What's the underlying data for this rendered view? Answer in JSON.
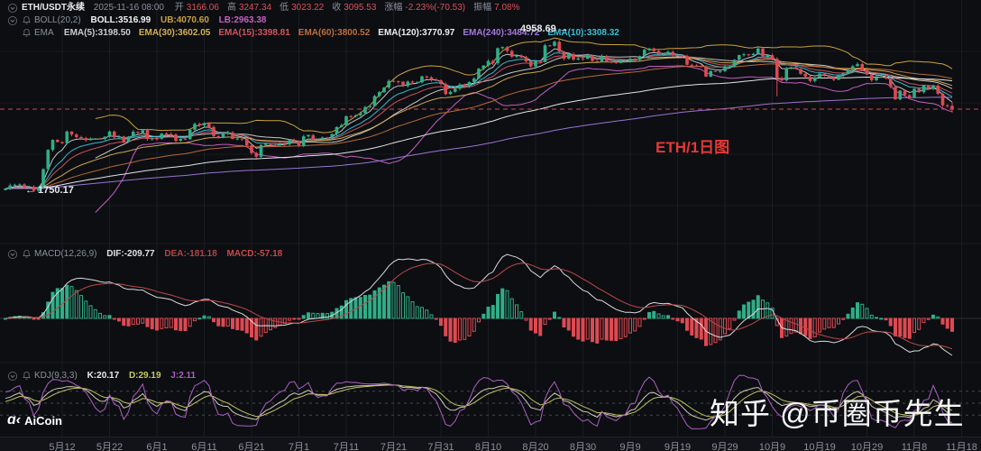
{
  "header": {
    "symbol": "ETH/USDT永续",
    "datetime": "2025-11-16 08:00",
    "ohlc_fields": [
      {
        "label": "开",
        "value": "3166.06"
      },
      {
        "label": "高",
        "value": "3247.34"
      },
      {
        "label": "低",
        "value": "3023.22"
      },
      {
        "label": "收",
        "value": "3095.53"
      },
      {
        "label": "涨幅",
        "value": "-2.23%(-70.53)"
      },
      {
        "label": "振幅",
        "value": "7.08%"
      }
    ],
    "boll_row": {
      "name": "BOLL(20,2)",
      "mid": "BOLL:3516.99",
      "ub": "UB:4070.60",
      "lb": "LB:2963.38"
    },
    "ema_row": {
      "name": "EMA",
      "items": [
        {
          "label": "EMA(5):3198.50",
          "color": "#c9ccd2"
        },
        {
          "label": "EMA(30):3602.05",
          "color": "#d6b052"
        },
        {
          "label": "EMA(15):3398.81",
          "color": "#d2555e"
        },
        {
          "label": "EMA(60):3800.52",
          "color": "#bf6f3d"
        },
        {
          "label": "EMA(120):3770.97",
          "color": "#eceff2"
        },
        {
          "label": "EMA(240):3484.72",
          "color": "#a478dd"
        },
        {
          "label": "EMA(10):3308.32",
          "color": "#39c2d5"
        }
      ]
    }
  },
  "macd_row": {
    "name": "MACD(12,26,9)",
    "dif": "DIF:-209.77",
    "dea": "DEA:-181.18",
    "macd": "MACD:-57.18"
  },
  "kdj_row": {
    "name": "KDJ(9,3,3)",
    "k": "K:20.17",
    "d": "D:29.19",
    "j": "J:2.11"
  },
  "annotations": {
    "high_label": "4958.69 →",
    "low_label": "← 1750.17",
    "chart_label": "ETH/1日图"
  },
  "watermark": "知乎 @币圈币先生",
  "logo_text": "AiCoin",
  "chart_data": {
    "type": "candlestick",
    "title": "ETH/USDT perpetual, 1-day chart, 2025-04-30 to 2025-11-16",
    "interval": "1D",
    "y_scale": "log",
    "price_high": 4958.69,
    "price_low": 1750.17,
    "last_price_line": 3095.53,
    "closes": [
      1793,
      1832,
      1841,
      1845,
      1808,
      1816,
      1765,
      1812,
      2050,
      2340,
      2506,
      2470,
      2450,
      2655,
      2600,
      2555,
      2538,
      2502,
      2520,
      2528,
      2522,
      2560,
      2655,
      2550,
      2565,
      2470,
      2565,
      2650,
      2632,
      2680,
      2522,
      2530,
      2528,
      2618,
      2608,
      2602,
      2492,
      2522,
      2520,
      2688,
      2798,
      2770,
      2812,
      2738,
      2572,
      2540,
      2618,
      2638,
      2522,
      2530,
      2520,
      2412,
      2290,
      2232,
      2420,
      2442,
      2422,
      2420,
      2438,
      2432,
      2500,
      2488,
      2412,
      2568,
      2590,
      2512,
      2520,
      2548,
      2540,
      2608,
      2738,
      2772,
      2950,
      2942,
      2968,
      3012,
      3138,
      3162,
      3388,
      3478,
      3592,
      3758,
      3748,
      3738,
      3628,
      3742,
      3718,
      3722,
      3878,
      3852,
      3788,
      3772,
      3680,
      3432,
      3488,
      3562,
      3668,
      3618,
      3732,
      3822,
      4088,
      4178,
      4308,
      4248,
      4708,
      4742,
      4618,
      4438,
      4472,
      4418,
      4302,
      4152,
      4308,
      4282,
      4798,
      4782,
      4918,
      4592,
      4382,
      4518,
      4352,
      4388,
      4372,
      4478,
      4312,
      4292,
      4458,
      4302,
      4282,
      4252,
      4298,
      4302,
      4378,
      4342,
      4458,
      4658,
      4698,
      4618,
      4512,
      4522,
      4588,
      4478,
      4472,
      4458,
      4198,
      4182,
      4168,
      4138,
      3872,
      4022,
      4018,
      4022,
      4148,
      4152,
      4348,
      4488,
      4512,
      4488,
      4528,
      4698,
      4448,
      4488,
      4378,
      3828,
      3772,
      4098,
      4128,
      4082,
      3948,
      3872,
      3758,
      3848,
      3952,
      3908,
      3858,
      3788,
      3902,
      3958,
      4048,
      4158,
      4218,
      4048,
      3932,
      3778,
      3852,
      3868,
      3818,
      3608,
      3312,
      3518,
      3408,
      3358,
      3562,
      3478,
      3648,
      3558,
      3638,
      3442,
      3178,
      3158,
      3095.53
    ],
    "last_candle": {
      "open": 3166.06,
      "high": 3247.34,
      "low": 3023.22,
      "close": 3095.53
    },
    "marked_days": {
      "low_day": 6,
      "low_value": 1750.17,
      "high_day": 116,
      "high_value": 4958.69,
      "crash_day": 163,
      "crash_low": 3382
    },
    "x_ticks": [
      {
        "label": "5月12",
        "day": 12
      },
      {
        "label": "5月22",
        "day": 22
      },
      {
        "label": "6月1",
        "day": 32
      },
      {
        "label": "6月11",
        "day": 42
      },
      {
        "label": "6月21",
        "day": 52
      },
      {
        "label": "7月1",
        "day": 62
      },
      {
        "label": "7月11",
        "day": 72
      },
      {
        "label": "7月21",
        "day": 82
      },
      {
        "label": "7月31",
        "day": 92
      },
      {
        "label": "8月10",
        "day": 102
      },
      {
        "label": "8月20",
        "day": 112
      },
      {
        "label": "8月30",
        "day": 122
      },
      {
        "label": "9月9",
        "day": 132
      },
      {
        "label": "9月19",
        "day": 142
      },
      {
        "label": "9月29",
        "day": 152
      },
      {
        "label": "10月9",
        "day": 162
      },
      {
        "label": "10月19",
        "day": 172
      },
      {
        "label": "10月29",
        "day": 182
      },
      {
        "label": "11月8",
        "day": 192
      },
      {
        "label": "11月18",
        "day": 202
      }
    ],
    "overlays": {
      "boll_period": 20,
      "boll_mult": 2,
      "ema_periods": [
        5,
        10,
        15,
        30,
        60,
        120,
        240
      ]
    },
    "indicators": {
      "macd_params": [
        12,
        26,
        9
      ],
      "kdj_params": [
        9,
        3,
        3
      ],
      "kdj_ref_lines": [
        80,
        50,
        20
      ]
    },
    "colors": {
      "background": "#0c0e12",
      "up": "#2fae88",
      "down": "#de4a52",
      "boll_ub": "#c9a13f",
      "boll_mid": "#dadada",
      "boll_lb": "#c55fc0",
      "ema": {
        "5": "#c9ccd2",
        "10": "#39c2d5",
        "15": "#d2555e",
        "30": "#d6b052",
        "60": "#bf6f3d",
        "120": "#eceff2",
        "240": "#a478dd"
      },
      "macd_dif": "#d8dade",
      "macd_dea": "#c04848",
      "kdj_k": "#cfc8b6",
      "kdj_d": "#c2c25e",
      "kdj_j": "#ad5fc2",
      "price_line": "#ce4a50",
      "grid": "#191c22"
    }
  }
}
